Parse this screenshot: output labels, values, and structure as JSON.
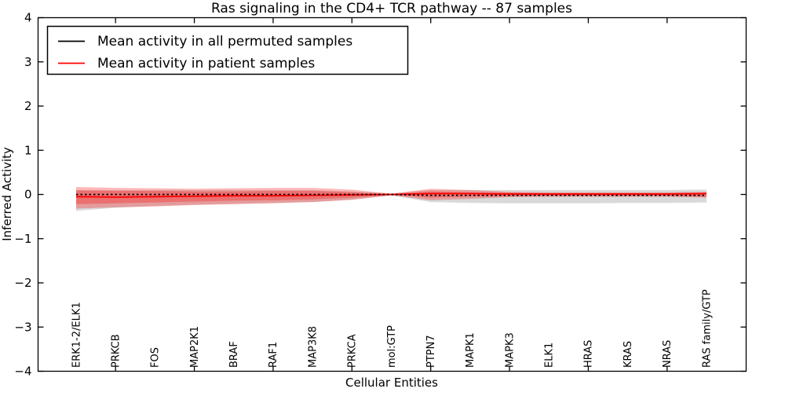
{
  "figure": {
    "title": "Ras signaling in the CD4+ TCR pathway -- 87 samples",
    "xlabel": "Cellular Entities",
    "ylabel": "Inferred Activity"
  },
  "legend": {
    "position": "upper left",
    "items": [
      {
        "label": "Mean activity in all permuted samples",
        "color": "#000000",
        "line_style": "solid"
      },
      {
        "label": "Mean activity in patient samples",
        "color": "#ff0000",
        "line_style": "solid"
      }
    ]
  },
  "colors": {
    "background": "#ffffff",
    "axis": "#000000",
    "permuted_line": "#000000",
    "patient_line": "#ff0000",
    "permuted_band": "rgba(120,120,120,0.28)",
    "patient_band": "rgba(255,0,0,0.28)"
  },
  "chart_data": {
    "type": "line",
    "title": "Ras signaling in the CD4+ TCR pathway -- 87 samples",
    "xlabel": "Cellular Entities",
    "ylabel": "Inferred Activity",
    "ylim": [
      -4,
      4
    ],
    "y_ticks": [
      4,
      3,
      2,
      1,
      0,
      -1,
      -2,
      -3,
      -4
    ],
    "grid": false,
    "legend_position": "upper left",
    "categories": [
      "ERK1-2/ELK1",
      "PRKCB",
      "FOS",
      "MAP2K1",
      "BRAF",
      "RAF1",
      "MAP3K8",
      "PRKCA",
      "mol:GTP",
      "PTPN7",
      "MAPK1",
      "MAPK3",
      "ELK1",
      "HRAS",
      "KRAS",
      "NRAS",
      "RAS family/GTP"
    ],
    "series": [
      {
        "name": "Mean activity in all permuted samples",
        "color": "#000000",
        "dash": "dotted",
        "values": [
          0,
          0,
          0,
          0,
          0,
          0,
          0,
          0,
          0,
          -0.02,
          -0.02,
          -0.02,
          -0.02,
          -0.02,
          -0.02,
          -0.02,
          -0.02
        ]
      },
      {
        "name": "Mean activity in patient samples",
        "color": "#ff0000",
        "dash": "solid",
        "values": [
          -0.05,
          -0.06,
          -0.05,
          -0.04,
          -0.03,
          -0.03,
          -0.02,
          -0.01,
          0,
          0.02,
          0.02,
          0.01,
          0.01,
          0.01,
          0.01,
          0.01,
          0.02
        ]
      }
    ],
    "bands": [
      {
        "name": "permuted-samples-band",
        "fill": "rgba(120,120,120,0.28)",
        "upper": [
          0.1,
          0.1,
          0.1,
          0.1,
          0.1,
          0.1,
          0.1,
          0.07,
          0.02,
          0.1,
          0.1,
          0.1,
          0.1,
          0.1,
          0.1,
          0.1,
          0.11
        ],
        "lower": [
          -0.37,
          -0.3,
          -0.26,
          -0.23,
          -0.21,
          -0.19,
          -0.17,
          -0.12,
          -0.02,
          -0.17,
          -0.19,
          -0.2,
          -0.2,
          -0.2,
          -0.19,
          -0.19,
          -0.18
        ]
      },
      {
        "name": "patient-samples-band-outer",
        "fill": "rgba(255,0,0,0.28)",
        "upper": [
          0.17,
          0.15,
          0.14,
          0.13,
          0.14,
          0.15,
          0.15,
          0.11,
          0.02,
          0.13,
          0.1,
          0.06,
          0.05,
          0.05,
          0.05,
          0.05,
          0.06
        ],
        "lower": [
          -0.32,
          -0.29,
          -0.27,
          -0.24,
          -0.22,
          -0.2,
          -0.17,
          -0.12,
          -0.02,
          -0.13,
          -0.1,
          -0.06,
          -0.05,
          -0.05,
          -0.05,
          -0.05,
          -0.07
        ]
      },
      {
        "name": "patient-samples-band-inner",
        "fill": "rgba(255,0,0,0.28)",
        "upper": [
          0.09,
          0.08,
          0.08,
          0.07,
          0.07,
          0.08,
          0.08,
          0.05,
          0.01,
          0.07,
          0.05,
          0.04,
          0.03,
          0.03,
          0.03,
          0.03,
          0.04
        ],
        "lower": [
          -0.22,
          -0.2,
          -0.18,
          -0.16,
          -0.14,
          -0.13,
          -0.11,
          -0.07,
          -0.01,
          -0.07,
          -0.05,
          -0.04,
          -0.03,
          -0.03,
          -0.03,
          -0.03,
          -0.05
        ]
      }
    ]
  }
}
